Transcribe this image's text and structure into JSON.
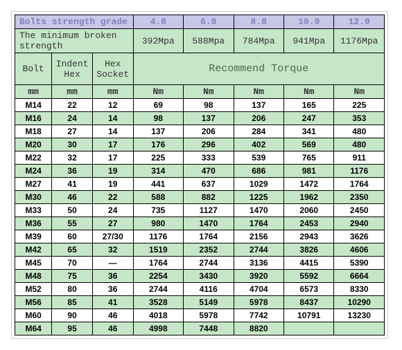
{
  "header": {
    "grade_label": "Bolts strength grade",
    "grades": [
      "4.8",
      "6.8",
      "8.8",
      "10.9",
      "12.9"
    ],
    "strength_label": "The minimum broken strength",
    "strength": [
      "392Mpa",
      "588Mpa",
      "784Mpa",
      "941Mpa",
      "1176Mpa"
    ],
    "cols": [
      "Bolt",
      "Indent Hex",
      "Hex Socket"
    ],
    "recommend": "Recommend Torque",
    "units": [
      "mm",
      "mm",
      "mm",
      "Nm",
      "Nm",
      "Nm",
      "Nm",
      "Nm"
    ]
  },
  "rows": [
    [
      "M14",
      "22",
      "12",
      "69",
      "98",
      "137",
      "165",
      "225"
    ],
    [
      "M16",
      "24",
      "14",
      "98",
      "137",
      "206",
      "247",
      "353"
    ],
    [
      "M18",
      "27",
      "14",
      "137",
      "206",
      "284",
      "341",
      "480"
    ],
    [
      "M20",
      "30",
      "17",
      "176",
      "296",
      "402",
      "569",
      "480"
    ],
    [
      "M22",
      "32",
      "17",
      "225",
      "333",
      "539",
      "765",
      "911"
    ],
    [
      "M24",
      "36",
      "19",
      "314",
      "470",
      "686",
      "981",
      "1176"
    ],
    [
      "M27",
      "41",
      "19",
      "441",
      "637",
      "1029",
      "1472",
      "1764"
    ],
    [
      "M30",
      "46",
      "22",
      "588",
      "882",
      "1225",
      "1962",
      "2350"
    ],
    [
      "M33",
      "50",
      "24",
      "735",
      "1127",
      "1470",
      "2060",
      "2450"
    ],
    [
      "M36",
      "55",
      "27",
      "980",
      "1470",
      "1764",
      "2453",
      "2940"
    ],
    [
      "M39",
      "60",
      "27/30",
      "1176",
      "1764",
      "2156",
      "2943",
      "3626"
    ],
    [
      "M42",
      "65",
      "32",
      "1519",
      "2352",
      "2744",
      "3826",
      "4606"
    ],
    [
      "M45",
      "70",
      "—",
      "1764",
      "2744",
      "3136",
      "4415",
      "5390"
    ],
    [
      "M48",
      "75",
      "36",
      "2254",
      "3430",
      "3920",
      "5592",
      "6664"
    ],
    [
      "M52",
      "80",
      "36",
      "2744",
      "4116",
      "4704",
      "6573",
      "8330"
    ],
    [
      "M56",
      "85",
      "41",
      "3528",
      "5149",
      "5978",
      "8437",
      "10290"
    ],
    [
      "M60",
      "90",
      "46",
      "4018",
      "5978",
      "7742",
      "10791",
      "13230"
    ],
    [
      "M64",
      "95",
      "46",
      "4998",
      "7448",
      "8820",
      "",
      ""
    ]
  ]
}
